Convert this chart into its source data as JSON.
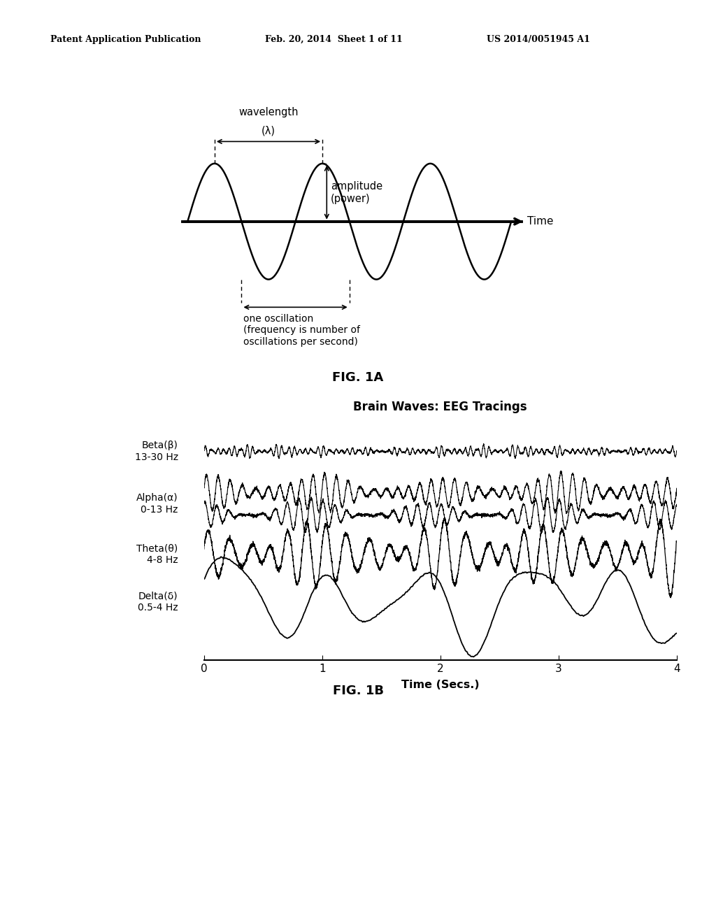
{
  "background_color": "#ffffff",
  "header_text": "Patent Application Publication",
  "header_date": "Feb. 20, 2014  Sheet 1 of 11",
  "header_patent": "US 2014/0051945 A1",
  "fig1a_label": "FIG. 1A",
  "fig1b_label": "FIG. 1B",
  "fig1b_title": "Brain Waves: EEG Tracings",
  "wavelength_label_line1": "(λ)",
  "wavelength_label_line2": "wavelength",
  "amplitude_label": "amplitude\n(power)",
  "time_label": "Time",
  "oscillation_label": "one oscillation\n(frequency is number of\noscillations per second)",
  "time_xlabel": "Time (Secs.)",
  "header_fontsize": 9,
  "fig_label_fontsize": 13,
  "eeg_title_fontsize": 12,
  "eeg_label_fontsize": 10
}
